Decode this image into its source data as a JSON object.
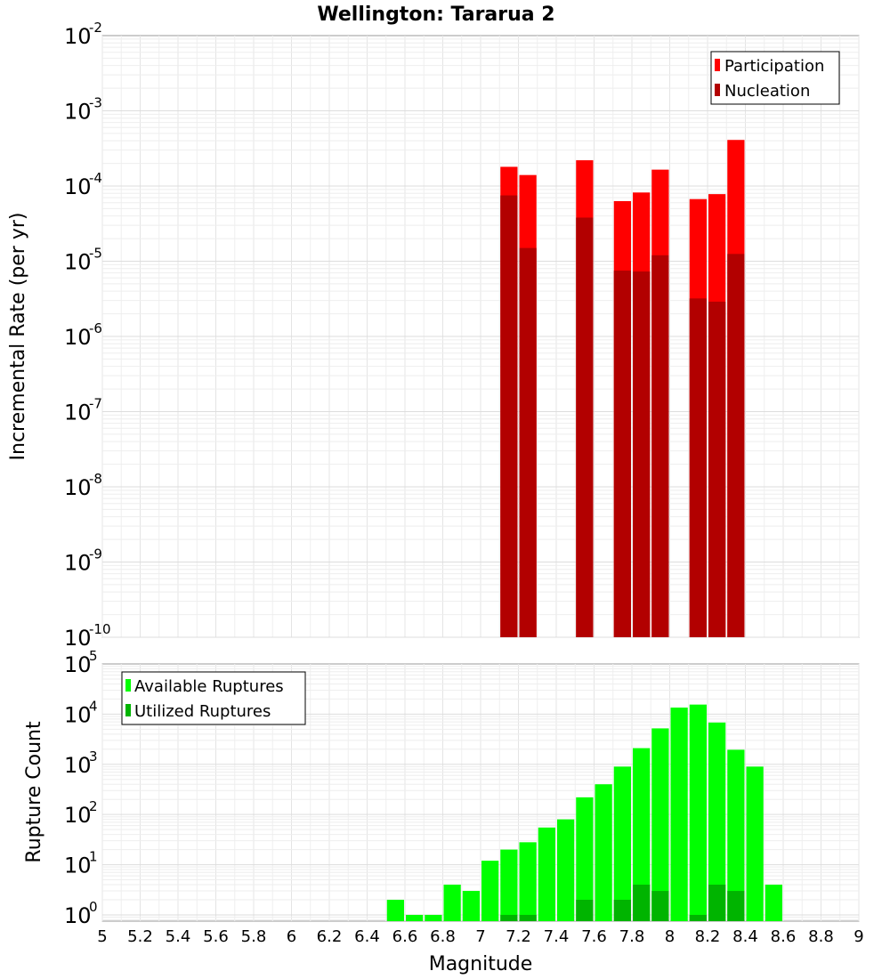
{
  "title": "Wellington: Tararua 2",
  "xlabel": "Magnitude",
  "x_ticks": [
    "5",
    "5.2",
    "5.4",
    "5.6",
    "5.8",
    "6",
    "6.2",
    "6.4",
    "6.6",
    "6.8",
    "7",
    "7.2",
    "7.4",
    "7.6",
    "7.8",
    "8",
    "8.2",
    "8.4",
    "8.6",
    "8.8",
    "9"
  ],
  "top_panel": {
    "ylabel": "Incremental Rate (per yr)",
    "y_ticks": [
      {
        "base": "10",
        "exp": "-10"
      },
      {
        "base": "10",
        "exp": "-9"
      },
      {
        "base": "10",
        "exp": "-8"
      },
      {
        "base": "10",
        "exp": "-7"
      },
      {
        "base": "10",
        "exp": "-6"
      },
      {
        "base": "10",
        "exp": "-5"
      },
      {
        "base": "10",
        "exp": "-4"
      },
      {
        "base": "10",
        "exp": "-3"
      },
      {
        "base": "10",
        "exp": "-2"
      }
    ],
    "legend": [
      "Participation",
      "Nucleation"
    ],
    "colors": {
      "participation": "#ff0000",
      "nucleation": "#b20000"
    }
  },
  "bottom_panel": {
    "ylabel": "Rupture Count",
    "y_ticks": [
      {
        "base": "10",
        "exp": "0"
      },
      {
        "base": "10",
        "exp": "1"
      },
      {
        "base": "10",
        "exp": "2"
      },
      {
        "base": "10",
        "exp": "3"
      },
      {
        "base": "10",
        "exp": "4"
      },
      {
        "base": "10",
        "exp": "5"
      }
    ],
    "legend": [
      "Available Ruptures",
      "Utilized Ruptures"
    ],
    "colors": {
      "available": "#00ff00",
      "utilized": "#00b400"
    }
  },
  "chart_data": [
    {
      "type": "bar",
      "title": "Wellington: Tararua 2",
      "xlabel": "",
      "ylabel": "Incremental Rate (per yr)",
      "yscale": "log",
      "xlim": [
        5,
        9
      ],
      "ylim": [
        1e-10,
        0.01
      ],
      "bin_width": 0.1,
      "grid": true,
      "legend_position": "top-right",
      "series": [
        {
          "name": "Participation",
          "x": [
            7.15,
            7.25,
            7.55,
            7.75,
            7.85,
            7.95,
            8.15,
            8.25,
            8.35
          ],
          "values": [
            0.00018,
            0.00014,
            0.00022,
            6.3e-05,
            8.2e-05,
            0.000165,
            6.7e-05,
            7.8e-05,
            0.00041
          ]
        },
        {
          "name": "Nucleation",
          "x": [
            7.15,
            7.25,
            7.55,
            7.75,
            7.85,
            7.95,
            8.15,
            8.25,
            8.35
          ],
          "values": [
            7.5e-05,
            1.5e-05,
            3.8e-05,
            7.5e-06,
            7.3e-06,
            1.2e-05,
            3.2e-06,
            2.9e-06,
            1.25e-05
          ]
        }
      ]
    },
    {
      "type": "bar",
      "xlabel": "Magnitude",
      "ylabel": "Rupture Count",
      "yscale": "log",
      "xlim": [
        5,
        9
      ],
      "ylim": [
        0.75,
        100000
      ],
      "bin_width": 0.1,
      "grid": true,
      "legend_position": "top-left",
      "series": [
        {
          "name": "Available Ruptures",
          "x": [
            6.55,
            6.65,
            6.75,
            6.85,
            6.95,
            7.05,
            7.15,
            7.25,
            7.35,
            7.45,
            7.55,
            7.65,
            7.75,
            7.85,
            7.95,
            8.05,
            8.15,
            8.25,
            8.35,
            8.45,
            8.55
          ],
          "values": [
            2,
            1,
            1,
            4,
            3,
            12,
            20,
            28,
            55,
            80,
            220,
            400,
            900,
            2100,
            5200,
            13500,
            15500,
            6800,
            1950,
            900,
            4
          ]
        },
        {
          "name": "Utilized Ruptures",
          "x": [
            7.15,
            7.25,
            7.55,
            7.75,
            7.85,
            7.95,
            8.15,
            8.25,
            8.35
          ],
          "values": [
            1,
            1,
            2,
            2,
            4,
            3,
            1,
            4,
            3
          ]
        }
      ]
    }
  ]
}
